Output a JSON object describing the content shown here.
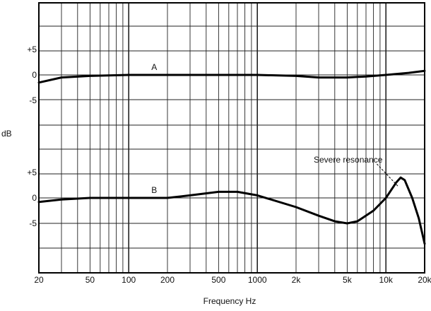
{
  "chart_data": {
    "type": "line",
    "xscale": "log",
    "xlabel": "Frequency Hz",
    "ylabel": "dB",
    "xlim": [
      20,
      20000
    ],
    "x_ticks": [
      {
        "v": 20,
        "label": "20"
      },
      {
        "v": 50,
        "label": "50"
      },
      {
        "v": 100,
        "label": "100"
      },
      {
        "v": 200,
        "label": "200"
      },
      {
        "v": 500,
        "label": "500"
      },
      {
        "v": 1000,
        "label": "1000"
      },
      {
        "v": 2000,
        "label": "2k"
      },
      {
        "v": 5000,
        "label": "5k"
      },
      {
        "v": 10000,
        "label": "10k"
      },
      {
        "v": 20000,
        "label": "20k"
      }
    ],
    "grid": true,
    "panels": [
      {
        "id": "upper",
        "y_ticks": [
          {
            "v": 5,
            "label": "+5"
          },
          {
            "v": 0,
            "label": "0"
          },
          {
            "v": -5,
            "label": "-5"
          }
        ],
        "series": [
          {
            "name": "A",
            "points": [
              [
                20,
                -1.5
              ],
              [
                30,
                -0.5
              ],
              [
                50,
                -0.2
              ],
              [
                100,
                0
              ],
              [
                300,
                0
              ],
              [
                1000,
                0
              ],
              [
                2000,
                -0.2
              ],
              [
                3000,
                -0.5
              ],
              [
                5000,
                -0.5
              ],
              [
                7000,
                -0.3
              ],
              [
                10000,
                0
              ],
              [
                15000,
                0.4
              ],
              [
                20000,
                0.8
              ]
            ]
          }
        ]
      },
      {
        "id": "lower",
        "y_ticks": [
          {
            "v": 5,
            "label": "+5"
          },
          {
            "v": 0,
            "label": "0"
          },
          {
            "v": -5,
            "label": "-5"
          }
        ],
        "series": [
          {
            "name": "B",
            "points": [
              [
                20,
                -0.8
              ],
              [
                30,
                -0.3
              ],
              [
                50,
                0
              ],
              [
                100,
                0
              ],
              [
                200,
                0
              ],
              [
                300,
                0.5
              ],
              [
                500,
                1.2
              ],
              [
                700,
                1.2
              ],
              [
                1000,
                0.5
              ],
              [
                2000,
                -1.8
              ],
              [
                3000,
                -3.5
              ],
              [
                4000,
                -4.6
              ],
              [
                5000,
                -5
              ],
              [
                6000,
                -4.6
              ],
              [
                8000,
                -2.5
              ],
              [
                10000,
                0
              ],
              [
                12000,
                3
              ],
              [
                13000,
                4
              ],
              [
                14000,
                3.5
              ],
              [
                16000,
                0
              ],
              [
                18000,
                -4
              ],
              [
                20000,
                -9
              ]
            ]
          }
        ],
        "annotation": {
          "text": "Severe resonance",
          "x": 13000,
          "y": 4
        }
      }
    ]
  }
}
